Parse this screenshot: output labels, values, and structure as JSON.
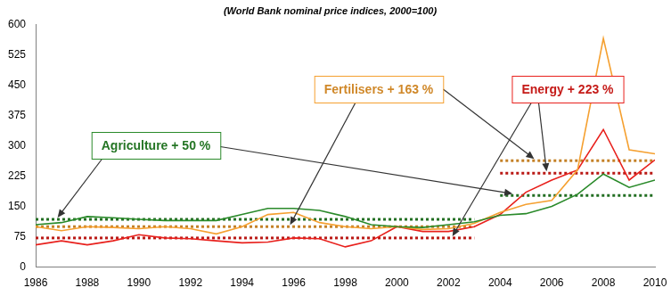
{
  "chart_data": {
    "type": "line",
    "subtitle": "(World Bank nominal price indices, 2000=100)",
    "x": [
      1986,
      1987,
      1988,
      1989,
      1990,
      1991,
      1992,
      1993,
      1994,
      1995,
      1996,
      1997,
      1998,
      1999,
      2000,
      2001,
      2002,
      2003,
      2004,
      2005,
      2006,
      2007,
      2008,
      2009,
      2010
    ],
    "series": [
      {
        "color": "#2a8a2a",
        "values": [
          105,
          110,
          125,
          122,
          118,
          115,
          115,
          115,
          130,
          145,
          145,
          140,
          125,
          105,
          100,
          98,
          105,
          112,
          128,
          132,
          150,
          180,
          230,
          197,
          215
        ],
        "averages": [
          {
            "x": [
              1986,
              2003
            ],
            "value": 118
          },
          {
            "x": [
              2004,
              2010
            ],
            "value": 177
          }
        ],
        "annotation": "Agriculture + 50 %"
      },
      {
        "color": "#f5a030",
        "values": [
          100,
          90,
          100,
          98,
          95,
          100,
          95,
          82,
          100,
          130,
          135,
          110,
          100,
          95,
          100,
          93,
          95,
          108,
          135,
          155,
          165,
          240,
          565,
          290,
          280
        ],
        "averages": [
          {
            "x": [
              1986,
              2003
            ],
            "value": 100
          },
          {
            "x": [
              2004,
              2010
            ],
            "value": 263
          }
        ],
        "annotation": "Fertilisers + 163 %"
      },
      {
        "color": "#e8201c",
        "values": [
          55,
          65,
          55,
          65,
          80,
          72,
          70,
          65,
          60,
          62,
          72,
          70,
          50,
          65,
          100,
          88,
          88,
          100,
          130,
          185,
          215,
          240,
          340,
          215,
          265
        ],
        "averages": [
          {
            "x": [
              1986,
              2003
            ],
            "value": 72
          },
          {
            "x": [
              2004,
              2010
            ],
            "value": 232
          }
        ],
        "annotation": "Energy + 223 %"
      }
    ],
    "xlim": [
      1986,
      2010
    ],
    "xticks": [
      1986,
      1988,
      1990,
      1992,
      1994,
      1996,
      1998,
      2000,
      2002,
      2004,
      2006,
      2008,
      2010
    ],
    "ylim": [
      0,
      600
    ],
    "yticks": [
      0,
      75,
      150,
      225,
      300,
      375,
      450,
      525,
      600
    ],
    "grid": false
  }
}
